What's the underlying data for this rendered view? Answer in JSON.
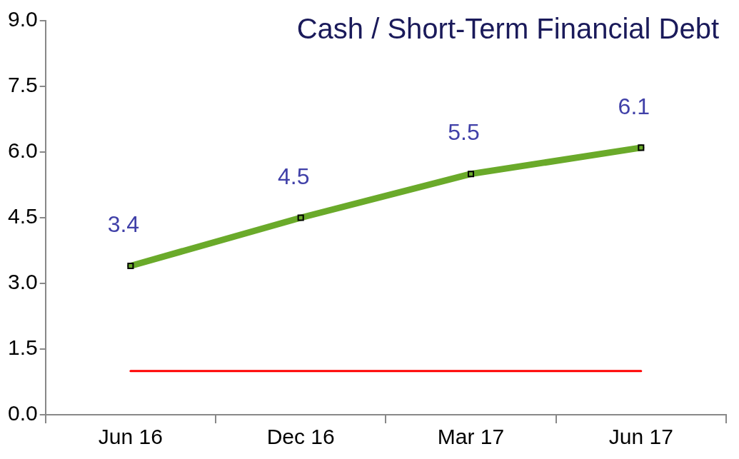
{
  "chart_data": {
    "type": "line",
    "title": "Cash / Short-Term Financial Debt",
    "categories": [
      "Jun 16",
      "Dec 16",
      "Mar 17",
      "Jun 17"
    ],
    "series": [
      {
        "color": "#6aaa2a",
        "values": [
          3.4,
          4.5,
          5.5,
          6.1
        ],
        "marker": "square",
        "value_labels": [
          "3.4",
          "4.5",
          "5.5",
          "6.1"
        ]
      },
      {
        "color": "#ff0000",
        "values": [
          1.0,
          1.0,
          1.0,
          1.0
        ],
        "marker": "none"
      }
    ],
    "ylim": [
      0,
      9
    ],
    "yticks": [
      {
        "value": 0,
        "label": "0.0"
      },
      1.5,
      {
        "value": 3,
        "label": "3.0"
      },
      4.5,
      {
        "value": 6,
        "label": "6.0"
      },
      7.5,
      {
        "value": 9,
        "label": "9.0"
      }
    ],
    "grid": false,
    "legend": false
  }
}
